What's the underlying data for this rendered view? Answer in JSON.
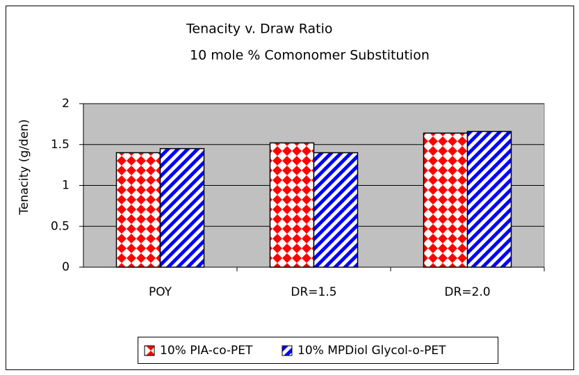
{
  "chart_data": {
    "type": "bar",
    "title": "Tenacity v. Draw Ratio",
    "subtitle": "10 mole % Comonomer Substitution",
    "y_label": "Tenacity (g/den)",
    "categories": [
      "POY",
      "DR=1.5",
      "DR=2.0"
    ],
    "series": [
      {
        "name": "10% PIA-co-PET",
        "color": "#ff0000",
        "values": [
          1.4,
          1.52,
          1.64
        ]
      },
      {
        "name": "10% MPDiol Glycol-o-PET",
        "color": "#0000ff",
        "values": [
          1.45,
          1.4,
          1.66
        ]
      }
    ],
    "ylim": [
      0,
      2
    ],
    "yticks": [
      0,
      0.5,
      1,
      1.5,
      2
    ],
    "grid": true,
    "legend": "bottom"
  }
}
